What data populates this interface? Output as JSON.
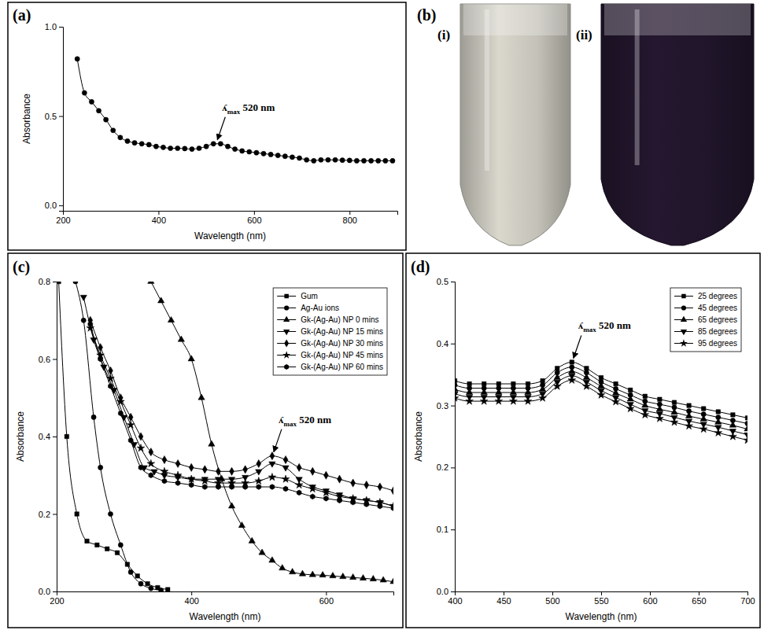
{
  "chart_data": [
    {
      "panel": "(a)",
      "type": "line",
      "x_label": "Wavelength (nm)",
      "y_label": "Absorbance",
      "xlim": [
        200,
        900
      ],
      "xticks": [
        200,
        400,
        600,
        800
      ],
      "ylim": [
        -0.03,
        1.0
      ],
      "yticks": [
        {
          "value": 0,
          "label": "0.0"
        },
        0.5,
        {
          "value": 1,
          "label": "1.0"
        }
      ],
      "series": [
        {
          "color": "#000000",
          "marker": "circle",
          "x": [
            230,
            245,
            260,
            275,
            290,
            305,
            320,
            335,
            350,
            365,
            380,
            395,
            410,
            425,
            440,
            455,
            470,
            485,
            500,
            515,
            530,
            545,
            560,
            575,
            590,
            605,
            620,
            635,
            650,
            665,
            680,
            695,
            710,
            725,
            740,
            755,
            770,
            785,
            800,
            815,
            830,
            845,
            860,
            875,
            890
          ],
          "values": [
            0.82,
            0.63,
            0.58,
            0.53,
            0.48,
            0.42,
            0.38,
            0.36,
            0.35,
            0.345,
            0.34,
            0.33,
            0.325,
            0.32,
            0.32,
            0.318,
            0.315,
            0.32,
            0.33,
            0.345,
            0.345,
            0.33,
            0.315,
            0.305,
            0.3,
            0.295,
            0.29,
            0.285,
            0.28,
            0.275,
            0.27,
            0.265,
            0.255,
            0.25,
            0.255,
            0.255,
            0.255,
            0.253,
            0.252,
            0.25,
            0.25,
            0.25,
            0.25,
            0.25,
            0.25
          ]
        }
      ],
      "annotations": [
        {
          "text": "ʎ",
          "subscript": "max",
          "text_after": " 520 nm",
          "x": 520,
          "y": 0.345
        }
      ]
    },
    {
      "panel": "(c)",
      "type": "line",
      "x_label": "Wavelength (nm)",
      "y_label": "Absorbance",
      "xlim": [
        200,
        700
      ],
      "xticks": [
        200,
        400,
        600
      ],
      "ylim": [
        0,
        0.8
      ],
      "yticks": [
        {
          "value": 0,
          "label": "0.0"
        },
        0.2,
        0.4,
        0.6,
        0.8
      ],
      "legend": "top-right",
      "series": [
        {
          "name": "Gum",
          "color": "#000000",
          "marker": "square",
          "x": [
            203,
            215,
            230,
            245,
            260,
            275,
            290,
            305,
            320,
            335,
            350,
            365
          ],
          "values": [
            0.8,
            0.4,
            0.2,
            0.13,
            0.12,
            0.11,
            0.1,
            0.07,
            0.04,
            0.02,
            0.01,
            0.005
          ]
        },
        {
          "name": "Ag-Au ions",
          "color": "#000000",
          "marker": "circle",
          "x": [
            228,
            240,
            255,
            265,
            280,
            295,
            310,
            325,
            340,
            355
          ],
          "values": [
            0.8,
            0.7,
            0.45,
            0.32,
            0.2,
            0.12,
            0.05,
            0.02,
            0.008,
            0.003
          ]
        },
        {
          "name": "Gk-(Ag-Au) NP 0 mins",
          "color": "#000000",
          "marker": "triangle",
          "x": [
            340,
            355,
            370,
            385,
            400,
            415,
            430,
            445,
            460,
            475,
            490,
            505,
            520,
            535,
            550,
            565,
            580,
            595,
            610,
            625,
            640,
            655,
            670,
            685,
            700
          ],
          "values": [
            0.8,
            0.75,
            0.7,
            0.65,
            0.6,
            0.5,
            0.38,
            0.29,
            0.22,
            0.17,
            0.13,
            0.1,
            0.08,
            0.06,
            0.05,
            0.045,
            0.043,
            0.042,
            0.04,
            0.038,
            0.036,
            0.034,
            0.032,
            0.029,
            0.025
          ]
        },
        {
          "name": "Gk-(Ag-Au) NP 15 mins",
          "color": "#000000",
          "marker": "triangle-down",
          "x": [
            240,
            255,
            270,
            285,
            300,
            315,
            330,
            345,
            360,
            380,
            400,
            420,
            440,
            460,
            480,
            500,
            520,
            540,
            560,
            580,
            600,
            620,
            640,
            660,
            680,
            700
          ],
          "values": [
            0.76,
            0.65,
            0.58,
            0.52,
            0.45,
            0.38,
            0.32,
            0.31,
            0.3,
            0.295,
            0.29,
            0.29,
            0.29,
            0.29,
            0.295,
            0.31,
            0.33,
            0.32,
            0.29,
            0.27,
            0.26,
            0.25,
            0.24,
            0.235,
            0.23,
            0.22
          ]
        },
        {
          "name": "Gk-(Ag-Au) NP 30 mins",
          "color": "#000000",
          "marker": "diamond",
          "x": [
            250,
            265,
            280,
            295,
            310,
            325,
            340,
            360,
            380,
            400,
            420,
            440,
            460,
            480,
            500,
            520,
            540,
            560,
            580,
            600,
            620,
            640,
            660,
            680,
            700
          ],
          "values": [
            0.7,
            0.63,
            0.57,
            0.5,
            0.45,
            0.4,
            0.36,
            0.34,
            0.33,
            0.32,
            0.315,
            0.31,
            0.31,
            0.315,
            0.33,
            0.35,
            0.34,
            0.32,
            0.31,
            0.3,
            0.29,
            0.28,
            0.275,
            0.27,
            0.26
          ]
        },
        {
          "name": "Gk-(Ag-Au) NP 45 mins",
          "color": "#000000",
          "marker": "star",
          "x": [
            250,
            265,
            280,
            295,
            310,
            325,
            340,
            360,
            380,
            400,
            420,
            440,
            460,
            480,
            500,
            520,
            540,
            560,
            580,
            600,
            620,
            640,
            660,
            680,
            700
          ],
          "values": [
            0.68,
            0.61,
            0.55,
            0.49,
            0.43,
            0.37,
            0.33,
            0.31,
            0.3,
            0.29,
            0.285,
            0.28,
            0.28,
            0.28,
            0.285,
            0.295,
            0.29,
            0.275,
            0.265,
            0.255,
            0.245,
            0.24,
            0.235,
            0.23,
            0.22
          ]
        },
        {
          "name": "Gk-(Ag-Au) NP 60 mins",
          "color": "#000000",
          "marker": "hexagon",
          "x": [
            250,
            265,
            280,
            295,
            310,
            325,
            340,
            360,
            380,
            400,
            420,
            440,
            460,
            480,
            500,
            520,
            540,
            560,
            580,
            600,
            620,
            640,
            660,
            680,
            700
          ],
          "values": [
            0.69,
            0.6,
            0.53,
            0.46,
            0.39,
            0.32,
            0.3,
            0.285,
            0.28,
            0.275,
            0.27,
            0.27,
            0.27,
            0.27,
            0.27,
            0.27,
            0.265,
            0.255,
            0.245,
            0.24,
            0.235,
            0.23,
            0.225,
            0.22,
            0.215
          ]
        }
      ],
      "annotations": [
        {
          "text": "ʎ",
          "subscript": "max",
          "text_after": " 520 nm",
          "x": 520,
          "y": 0.35
        }
      ]
    },
    {
      "panel": "(d)",
      "type": "line",
      "x_label": "Wavelength (nm)",
      "y_label": "Absorbance",
      "xlim": [
        400,
        700
      ],
      "xticks": [
        400,
        450,
        500,
        550,
        600,
        650,
        700
      ],
      "ylim": [
        0,
        0.5
      ],
      "yticks": [
        {
          "value": 0,
          "label": "0.0"
        },
        0.1,
        0.2,
        0.3,
        0.4,
        0.5
      ],
      "legend": "top-right",
      "series": [
        {
          "name": "25 degrees",
          "color": "#000000",
          "marker": "square",
          "x": [
            400,
            415,
            430,
            445,
            460,
            475,
            490,
            505,
            520,
            535,
            550,
            565,
            580,
            595,
            610,
            625,
            640,
            655,
            670,
            685,
            700
          ],
          "values": [
            0.34,
            0.335,
            0.335,
            0.335,
            0.335,
            0.335,
            0.34,
            0.36,
            0.37,
            0.36,
            0.345,
            0.335,
            0.325,
            0.315,
            0.31,
            0.305,
            0.3,
            0.295,
            0.29,
            0.285,
            0.28
          ]
        },
        {
          "name": "45 degrees",
          "color": "#000000",
          "marker": "circle",
          "x": [
            400,
            415,
            430,
            445,
            460,
            475,
            490,
            505,
            520,
            535,
            550,
            565,
            580,
            595,
            610,
            625,
            640,
            655,
            670,
            685,
            700
          ],
          "values": [
            0.333,
            0.328,
            0.328,
            0.328,
            0.328,
            0.328,
            0.333,
            0.353,
            0.362,
            0.353,
            0.338,
            0.327,
            0.317,
            0.307,
            0.302,
            0.297,
            0.291,
            0.286,
            0.281,
            0.276,
            0.271
          ]
        },
        {
          "name": "65 degrees",
          "color": "#000000",
          "marker": "triangle",
          "x": [
            400,
            415,
            430,
            445,
            460,
            475,
            490,
            505,
            520,
            535,
            550,
            565,
            580,
            595,
            610,
            625,
            640,
            655,
            670,
            685,
            700
          ],
          "values": [
            0.326,
            0.321,
            0.321,
            0.321,
            0.321,
            0.321,
            0.326,
            0.345,
            0.355,
            0.345,
            0.331,
            0.32,
            0.31,
            0.3,
            0.294,
            0.289,
            0.283,
            0.278,
            0.273,
            0.268,
            0.262
          ]
        },
        {
          "name": "85 degrees",
          "color": "#000000",
          "marker": "triangle-down",
          "x": [
            400,
            415,
            430,
            445,
            460,
            475,
            490,
            505,
            520,
            535,
            550,
            565,
            580,
            595,
            610,
            625,
            640,
            655,
            670,
            685,
            700
          ],
          "values": [
            0.319,
            0.314,
            0.314,
            0.314,
            0.314,
            0.314,
            0.319,
            0.338,
            0.348,
            0.338,
            0.324,
            0.313,
            0.302,
            0.292,
            0.287,
            0.281,
            0.275,
            0.27,
            0.265,
            0.259,
            0.253
          ]
        },
        {
          "name": "95 degrees",
          "color": "#000000",
          "marker": "star",
          "x": [
            400,
            415,
            430,
            445,
            460,
            475,
            490,
            505,
            520,
            535,
            550,
            565,
            580,
            595,
            610,
            625,
            640,
            655,
            670,
            685,
            700
          ],
          "values": [
            0.312,
            0.307,
            0.307,
            0.307,
            0.307,
            0.307,
            0.312,
            0.331,
            0.341,
            0.331,
            0.317,
            0.306,
            0.295,
            0.285,
            0.279,
            0.273,
            0.267,
            0.262,
            0.256,
            0.25,
            0.244
          ]
        }
      ],
      "annotations": [
        {
          "text": "ʎ",
          "subscript": "max",
          "text_after": " 520 nm",
          "x": 520,
          "y": 0.37
        }
      ]
    }
  ],
  "photo": {
    "panel": "(b)",
    "tubes": [
      {
        "label": "(i)",
        "color": "#c4c2b8"
      },
      {
        "label": "(ii)",
        "color": "#20152a"
      }
    ]
  }
}
